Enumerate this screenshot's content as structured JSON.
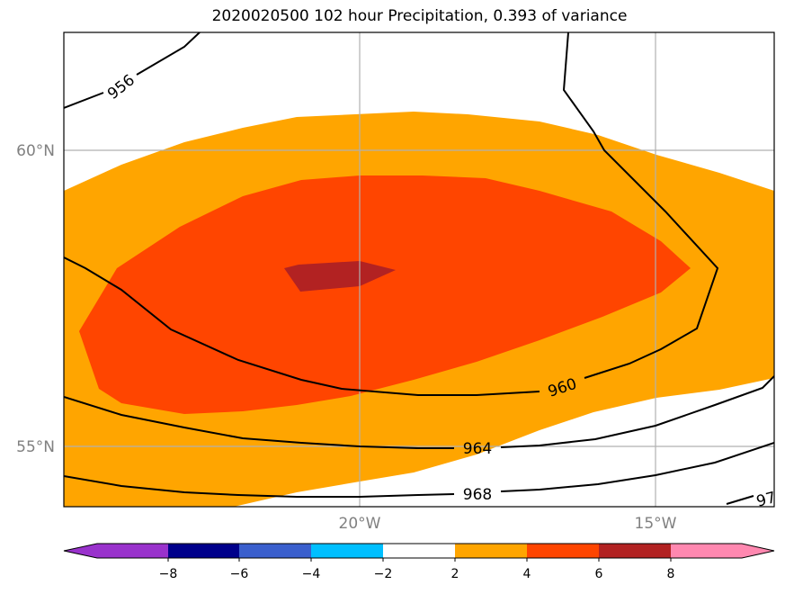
{
  "title": "2020020500 102 hour Precipitation, 0.393 of variance",
  "map": {
    "lat_labels": [
      "60°N",
      "55°N"
    ],
    "lon_labels": [
      "20°W",
      "15°W"
    ],
    "contour_labels": [
      "956",
      "960",
      "964",
      "968",
      "97"
    ],
    "gridlines": true
  },
  "colorbar": {
    "ticks": [
      "−8",
      "−6",
      "−4",
      "−2",
      "2",
      "4",
      "6",
      "8"
    ],
    "colors": [
      "#9932cc",
      "#00008b",
      "#3a5fcd",
      "#00bfff",
      "#ffffff",
      "#ffa500",
      "#ff4500",
      "#b22222",
      "#ff88b0"
    ]
  },
  "colors": {
    "level_2_4": "#ffa500",
    "level_4_6": "#ff4500",
    "level_6_8": "#b22222",
    "contour": "#000000",
    "gridline": "#b0b0b0"
  }
}
